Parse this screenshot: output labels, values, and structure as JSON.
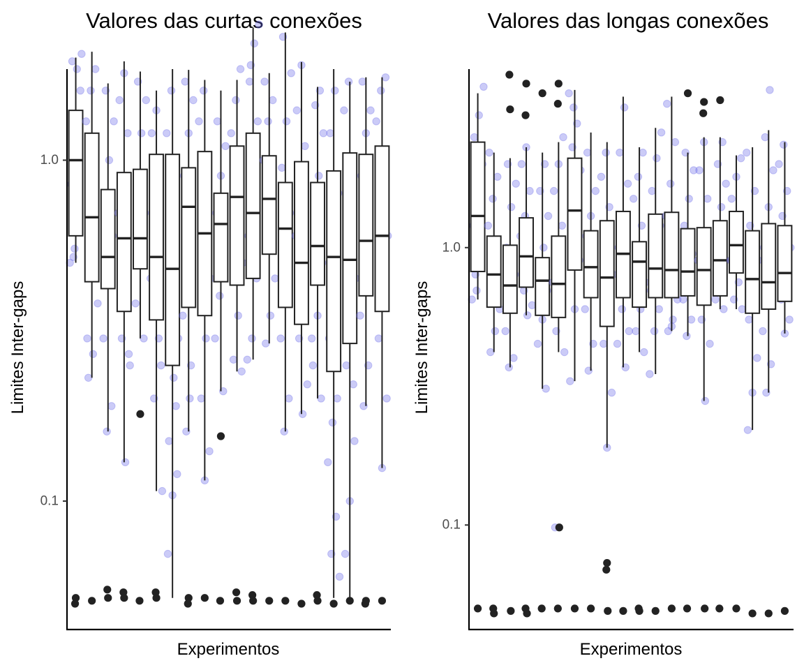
{
  "chart_data": [
    {
      "type": "boxplot",
      "title": "Valores das curtas conexões",
      "xlabel": "Experimentos",
      "ylabel": "Limites Inter-gaps",
      "y_scale": "log10",
      "ylim": [
        0.042,
        1.85
      ],
      "yticks": [
        0.1,
        1.0
      ],
      "ytick_labels": [
        "0.1",
        "1.0"
      ],
      "grid": false,
      "legend": "none",
      "colors": {
        "box_fill": "#ffffff",
        "box_line": "#222222",
        "jitter": "#6a6ae8",
        "outlier": "#222222"
      },
      "boxes": [
        {
          "low": 0.5,
          "q1": 0.6,
          "median": 1.0,
          "q3": 1.4,
          "high": 2.0,
          "jitter": [
            0.5,
            0.55,
            0.65,
            0.85,
            1.3,
            1.6,
            1.95,
            1.85,
            2.05,
            0.52
          ],
          "outliers": [
            0.052,
            0.05
          ]
        },
        {
          "low": 0.23,
          "q1": 0.44,
          "median": 0.68,
          "q3": 1.2,
          "high": 2.08,
          "jitter": [
            0.23,
            0.27,
            0.38,
            0.6,
            0.95,
            1.3,
            1.6,
            1.85,
            0.3
          ],
          "outliers": [
            0.051
          ]
        },
        {
          "low": 0.16,
          "q1": 0.42,
          "median": 0.52,
          "q3": 0.82,
          "high": 1.68,
          "jitter": [
            0.16,
            0.19,
            0.3,
            0.45,
            0.6,
            0.75,
            1.0,
            1.3,
            1.6
          ],
          "outliers": [
            0.052,
            0.055
          ]
        },
        {
          "low": 0.13,
          "q1": 0.36,
          "median": 0.59,
          "q3": 0.92,
          "high": 1.95,
          "jitter": [
            0.13,
            0.25,
            0.3,
            0.45,
            0.7,
            0.9,
            1.2,
            1.5,
            1.8,
            0.27
          ],
          "outliers": [
            0.052,
            0.054
          ]
        },
        {
          "low": 0.3,
          "q1": 0.48,
          "median": 0.59,
          "q3": 0.94,
          "high": 1.82,
          "jitter": [
            0.3,
            0.38,
            0.5,
            0.7,
            0.85,
            1.2,
            1.5,
            1.7
          ],
          "outliers": [
            0.18,
            0.051
          ]
        },
        {
          "low": 0.107,
          "q1": 0.34,
          "median": 0.52,
          "q3": 1.04,
          "high": 1.6,
          "jitter": [
            0.107,
            0.2,
            0.3,
            0.45,
            0.7,
            0.9,
            1.2,
            1.4,
            0.25
          ],
          "outliers": [
            0.052,
            0.054
          ]
        },
        {
          "low": 0.052,
          "q1": 0.25,
          "median": 0.48,
          "q3": 1.04,
          "high": 1.85,
          "jitter": [
            0.07,
            0.104,
            0.12,
            0.15,
            0.23,
            0.3,
            0.5,
            0.8,
            1.2,
            1.6,
            0.19
          ],
          "outliers": []
        },
        {
          "low": 0.16,
          "q1": 0.37,
          "median": 0.73,
          "q3": 0.95,
          "high": 1.84,
          "jitter": [
            0.16,
            0.25,
            0.35,
            0.5,
            0.7,
            0.9,
            1.2,
            1.5,
            1.7,
            0.2
          ],
          "outliers": [
            0.052,
            0.05
          ]
        },
        {
          "low": 0.115,
          "q1": 0.35,
          "median": 0.61,
          "q3": 1.06,
          "high": 1.72,
          "jitter": [
            0.115,
            0.14,
            0.2,
            0.3,
            0.45,
            0.7,
            1.0,
            1.3,
            1.6
          ],
          "outliers": [
            0.052
          ]
        },
        {
          "low": 0.21,
          "q1": 0.44,
          "median": 0.65,
          "q3": 0.8,
          "high": 1.6,
          "jitter": [
            0.21,
            0.3,
            0.4,
            0.55,
            0.7,
            0.9,
            1.1,
            1.3
          ],
          "outliers": [
            0.155,
            0.051
          ]
        },
        {
          "low": 0.24,
          "q1": 0.43,
          "median": 0.78,
          "q3": 1.1,
          "high": 1.72,
          "jitter": [
            0.24,
            0.26,
            0.35,
            0.5,
            0.65,
            0.9,
            1.2,
            1.5,
            1.85
          ],
          "outliers": [
            0.051,
            0.054
          ]
        },
        {
          "low": 0.26,
          "q1": 0.45,
          "median": 0.7,
          "q3": 1.2,
          "high": 2.45,
          "jitter": [
            0.26,
            0.3,
            0.45,
            0.6,
            0.9,
            1.3,
            1.7,
            2.2,
            2.5,
            1.9
          ],
          "outliers": [
            0.051,
            0.053
          ]
        },
        {
          "low": 0.29,
          "q1": 0.53,
          "median": 0.77,
          "q3": 1.03,
          "high": 1.8,
          "jitter": [
            0.29,
            0.35,
            0.45,
            0.6,
            0.8,
            1.0,
            1.3,
            1.5,
            1.7
          ],
          "outliers": [
            0.051
          ]
        },
        {
          "low": 0.16,
          "q1": 0.37,
          "median": 0.63,
          "q3": 0.86,
          "high": 2.37,
          "jitter": [
            0.16,
            0.2,
            0.3,
            0.5,
            0.7,
            0.95,
            1.3,
            1.8,
            2.3
          ],
          "outliers": [
            0.051
          ]
        },
        {
          "low": 0.18,
          "q1": 0.33,
          "median": 0.5,
          "q3": 0.99,
          "high": 1.94,
          "jitter": [
            0.18,
            0.22,
            0.3,
            0.4,
            0.6,
            0.8,
            1.1,
            1.4,
            1.9
          ],
          "outliers": [
            0.05
          ]
        },
        {
          "low": 0.2,
          "q1": 0.43,
          "median": 0.56,
          "q3": 0.86,
          "high": 1.64,
          "jitter": [
            0.2,
            0.25,
            0.35,
            0.5,
            0.7,
            0.9,
            1.2,
            1.45,
            1.6,
            0.3
          ],
          "outliers": [
            0.051,
            0.053
          ]
        },
        {
          "low": 0.052,
          "q1": 0.24,
          "median": 0.52,
          "q3": 0.93,
          "high": 1.85,
          "jitter": [
            0.06,
            0.07,
            0.09,
            0.13,
            0.17,
            0.2,
            0.3,
            0.5,
            0.8,
            1.2,
            1.6
          ],
          "outliers": [
            0.05
          ]
        },
        {
          "low": 0.052,
          "q1": 0.29,
          "median": 0.51,
          "q3": 1.05,
          "high": 1.7,
          "jitter": [
            0.07,
            0.1,
            0.15,
            0.25,
            0.3,
            0.45,
            0.7,
            1.0,
            1.4,
            1.7,
            0.22
          ],
          "outliers": [
            0.051
          ]
        },
        {
          "low": 0.19,
          "q1": 0.4,
          "median": 0.58,
          "q3": 1.04,
          "high": 1.75,
          "jitter": [
            0.19,
            0.25,
            0.35,
            0.5,
            0.7,
            0.9,
            1.2,
            1.4,
            1.7
          ],
          "outliers": [
            0.051,
            0.05
          ]
        },
        {
          "low": 0.125,
          "q1": 0.36,
          "median": 0.6,
          "q3": 1.1,
          "high": 1.75,
          "jitter": [
            0.125,
            0.2,
            0.3,
            0.45,
            0.6,
            0.8,
            1.0,
            1.3,
            1.6,
            1.75
          ],
          "outliers": [
            0.051
          ]
        }
      ]
    },
    {
      "type": "boxplot",
      "title": "Valores das longas conexões",
      "xlabel": "Experimentos",
      "ylabel": "Limites Inter-gaps",
      "y_scale": "log10",
      "ylim": [
        0.042,
        4.4
      ],
      "yticks": [
        0.1,
        1.0
      ],
      "ytick_labels": [
        "0.1",
        "1.0"
      ],
      "grid": false,
      "legend": "none",
      "colors": {
        "box_fill": "#ffffff",
        "box_line": "#222222",
        "jitter": "#6a6ae8",
        "outlier": "#222222"
      },
      "boxes": [
        {
          "low": 0.65,
          "q1": 0.82,
          "median": 1.3,
          "q3": 2.4,
          "high": 3.6,
          "jitter": [
            0.65,
            0.7,
            0.9,
            1.2,
            1.6,
            2.0,
            2.5,
            3.0,
            3.8,
            0.8
          ],
          "outliers": [
            0.05
          ]
        },
        {
          "low": 0.42,
          "q1": 0.61,
          "median": 0.8,
          "q3": 1.1,
          "high": 2.2,
          "jitter": [
            0.42,
            0.5,
            0.6,
            0.75,
            0.9,
            1.2,
            1.5,
            1.8,
            2.2
          ],
          "outliers": [
            0.048,
            0.05
          ]
        },
        {
          "low": 0.37,
          "q1": 0.58,
          "median": 0.73,
          "q3": 1.02,
          "high": 2.1,
          "jitter": [
            0.37,
            0.4,
            0.5,
            0.65,
            0.8,
            1.0,
            1.4,
            1.7,
            2.0
          ],
          "outliers": [
            3.15,
            4.2,
            0.049
          ]
        },
        {
          "low": 0.57,
          "q1": 0.72,
          "median": 0.93,
          "q3": 1.28,
          "high": 2.3,
          "jitter": [
            0.57,
            0.62,
            0.7,
            0.85,
            1.1,
            1.3,
            1.6,
            2.0,
            2.3
          ],
          "outliers": [
            3.9,
            3.0,
            0.048,
            0.05
          ]
        },
        {
          "low": 0.31,
          "q1": 0.57,
          "median": 0.76,
          "q3": 0.92,
          "high": 2.2,
          "jitter": [
            0.31,
            0.45,
            0.55,
            0.7,
            0.85,
            1.0,
            1.3,
            1.6,
            2.0
          ],
          "outliers": [
            3.6,
            0.05
          ]
        },
        {
          "low": 0.42,
          "q1": 0.56,
          "median": 0.74,
          "q3": 1.1,
          "high": 2.4,
          "jitter": [
            0.42,
            0.5,
            0.6,
            0.75,
            0.9,
            1.2,
            1.6,
            2.0,
            2.5,
            0.098
          ],
          "outliers": [
            3.9,
            3.3,
            0.098,
            0.05
          ]
        },
        {
          "low": 0.33,
          "q1": 0.83,
          "median": 1.36,
          "q3": 2.1,
          "high": 3.7,
          "jitter": [
            0.33,
            0.6,
            0.9,
            1.2,
            1.5,
            1.9,
            2.3,
            2.8,
            3.6,
            3.2
          ],
          "outliers": [
            0.05
          ]
        },
        {
          "low": 0.36,
          "q1": 0.66,
          "median": 0.85,
          "q3": 1.15,
          "high": 2.6,
          "jitter": [
            0.36,
            0.45,
            0.6,
            0.75,
            0.9,
            1.1,
            1.3,
            1.6,
            2.2
          ],
          "outliers": [
            0.05
          ]
        },
        {
          "low": 0.19,
          "q1": 0.52,
          "median": 0.78,
          "q3": 1.25,
          "high": 2.4,
          "jitter": [
            0.19,
            0.3,
            0.45,
            0.6,
            0.8,
            1.0,
            1.4,
            1.8,
            2.2
          ],
          "outliers": [
            0.073,
            0.069,
            0.049
          ]
        },
        {
          "low": 0.37,
          "q1": 0.66,
          "median": 0.95,
          "q3": 1.35,
          "high": 3.5,
          "jitter": [
            0.37,
            0.45,
            0.6,
            0.8,
            1.0,
            1.3,
            1.7,
            2.2,
            3.2,
            0.5
          ],
          "outliers": [
            0.049
          ]
        },
        {
          "low": 0.42,
          "q1": 0.61,
          "median": 0.89,
          "q3": 1.05,
          "high": 2.3,
          "jitter": [
            0.42,
            0.5,
            0.6,
            0.75,
            0.9,
            1.2,
            1.5,
            1.8,
            2.2
          ],
          "outliers": [
            0.049,
            0.05
          ]
        },
        {
          "low": 0.35,
          "q1": 0.66,
          "median": 0.84,
          "q3": 1.32,
          "high": 2.7,
          "jitter": [
            0.35,
            0.5,
            0.6,
            0.7,
            0.9,
            1.2,
            1.6,
            2.1,
            2.6
          ],
          "outliers": [
            0.049
          ]
        },
        {
          "low": 0.5,
          "q1": 0.66,
          "median": 0.83,
          "q3": 1.34,
          "high": 3.5,
          "jitter": [
            0.5,
            0.55,
            0.65,
            0.8,
            1.0,
            1.3,
            1.7,
            2.4,
            3.3,
            0.52
          ],
          "outliers": [
            0.05
          ]
        },
        {
          "low": 0.48,
          "q1": 0.67,
          "median": 0.82,
          "q3": 1.17,
          "high": 2.2,
          "jitter": [
            0.48,
            0.55,
            0.65,
            0.78,
            0.95,
            1.2,
            1.5,
            1.9,
            2.2
          ],
          "outliers": [
            3.6,
            0.05
          ]
        },
        {
          "low": 0.28,
          "q1": 0.62,
          "median": 0.83,
          "q3": 1.18,
          "high": 2.5,
          "jitter": [
            0.28,
            0.45,
            0.55,
            0.7,
            0.9,
            1.1,
            1.5,
            1.9,
            2.4
          ],
          "outliers": [
            3.35,
            3.05,
            0.05
          ]
        },
        {
          "low": 0.6,
          "q1": 0.67,
          "median": 0.9,
          "q3": 1.25,
          "high": 2.5,
          "jitter": [
            0.6,
            0.65,
            0.75,
            0.9,
            1.1,
            1.4,
            1.7,
            2.0,
            2.4
          ],
          "outliers": [
            3.4,
            0.05
          ]
        },
        {
          "low": 0.6,
          "q1": 0.81,
          "median": 1.02,
          "q3": 1.35,
          "high": 2.15,
          "jitter": [
            0.6,
            0.65,
            0.75,
            0.9,
            1.1,
            1.3,
            1.5,
            1.8,
            2.1
          ],
          "outliers": [
            0.05
          ]
        },
        {
          "low": 0.22,
          "q1": 0.58,
          "median": 0.77,
          "q3": 1.15,
          "high": 2.3,
          "jitter": [
            0.22,
            0.3,
            0.4,
            0.55,
            0.7,
            0.9,
            1.2,
            1.6,
            2.2
          ],
          "outliers": [
            0.048
          ]
        },
        {
          "low": 0.3,
          "q1": 0.6,
          "median": 0.75,
          "q3": 1.22,
          "high": 2.65,
          "jitter": [
            0.3,
            0.38,
            0.5,
            0.62,
            0.8,
            1.0,
            1.4,
            1.9,
            2.5,
            3.7
          ],
          "outliers": [
            0.048
          ]
        },
        {
          "low": 0.49,
          "q1": 0.64,
          "median": 0.81,
          "q3": 1.2,
          "high": 2.4,
          "jitter": [
            0.49,
            0.55,
            0.65,
            0.8,
            1.0,
            1.3,
            1.6,
            2.0,
            2.35
          ],
          "outliers": [
            0.049
          ]
        }
      ]
    }
  ]
}
